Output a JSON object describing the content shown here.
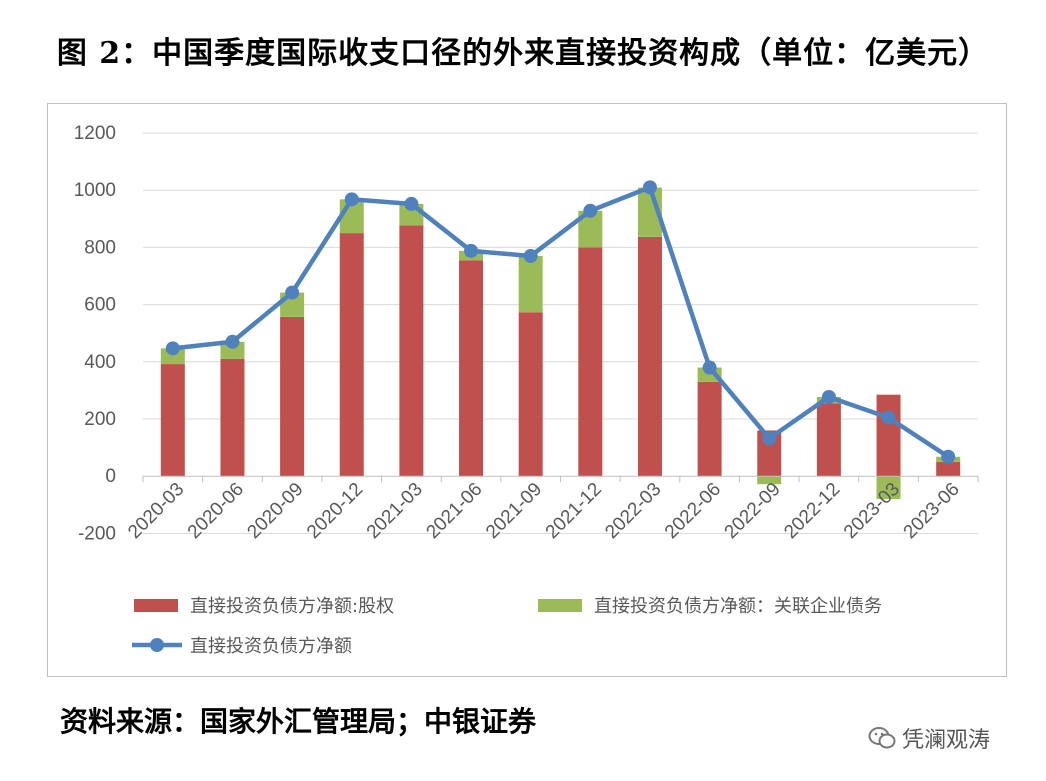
{
  "title": "图 2：中国季度国际收支口径的外来直接投资构成（单位：亿美元）",
  "source": "资料来源：国家外汇管理局；中银证券",
  "watermark": {
    "icon": "wechat-icon",
    "text": "凭澜观涛"
  },
  "chart_data": {
    "type": "bar",
    "categories": [
      "2020-03",
      "2020-06",
      "2020-09",
      "2020-12",
      "2021-03",
      "2021-06",
      "2021-09",
      "2021-12",
      "2022-03",
      "2022-06",
      "2022-09",
      "2022-12",
      "2023-03",
      "2023-06"
    ],
    "series": [
      {
        "name": "直接投资负债方净额:股权",
        "type": "bar",
        "color": "#c0504d",
        "values": [
          392,
          410,
          557,
          850,
          877,
          755,
          573,
          800,
          837,
          330,
          160,
          255,
          285,
          50
        ]
      },
      {
        "name": "直接投资负债方净额：关联企业债务",
        "type": "bar",
        "color": "#9bbb59",
        "values": [
          55,
          60,
          85,
          118,
          75,
          33,
          197,
          128,
          172,
          50,
          -28,
          22,
          -80,
          18
        ]
      },
      {
        "name": "直接投资负债方净额",
        "type": "line",
        "color": "#4f81bd",
        "values": [
          447,
          470,
          642,
          968,
          952,
          788,
          770,
          928,
          1010,
          380,
          132,
          277,
          205,
          68
        ]
      }
    ],
    "yticks": [
      "-200",
      "0",
      "200",
      "400",
      "600",
      "800",
      "1000",
      "1200"
    ],
    "ylim": [
      -200,
      1200
    ],
    "grid": true,
    "legend": "bottom"
  }
}
